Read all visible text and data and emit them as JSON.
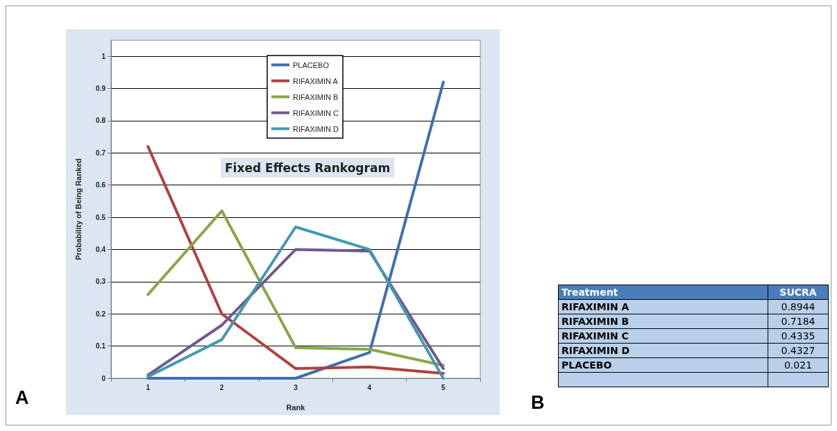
{
  "chart_data": [
    {
      "type": "line",
      "title": "Fixed Effects Rankogram",
      "xlabel": "Rank",
      "ylabel": "Probability of Being Ranked",
      "categories": [
        "1",
        "2",
        "3",
        "4",
        "5"
      ],
      "series": [
        {
          "name": "PLACEBO",
          "color": "#3f6fb0",
          "values": [
            0,
            0,
            0,
            0.08,
            0.92
          ]
        },
        {
          "name": "RIFAXIMIN A",
          "color": "#b0413e",
          "values": [
            0.72,
            0.2,
            0.03,
            0.035,
            0.015
          ]
        },
        {
          "name": "RIFAXIMIN B",
          "color": "#86a845",
          "values": [
            0.26,
            0.52,
            0.095,
            0.09,
            0.04
          ]
        },
        {
          "name": "RIFAXIMIN C",
          "color": "#71588f",
          "values": [
            0.01,
            0.165,
            0.4,
            0.395,
            0.03
          ]
        },
        {
          "name": "RIFAXIMIN D",
          "color": "#4299b0",
          "values": [
            0.005,
            0.12,
            0.47,
            0.4,
            0
          ]
        }
      ],
      "ylim": [
        0,
        1.05
      ],
      "yticks": [
        0,
        0.1,
        0.2,
        0.3,
        0.4,
        0.5,
        0.6,
        0.7,
        0.8,
        0.9,
        1
      ],
      "grid": "y",
      "legend": "top",
      "marker": "none",
      "line_style": "solid",
      "annotations": [
        "A"
      ]
    },
    {
      "type": "other",
      "xlabel": "Treatment",
      "ylabel": "SUCRA",
      "categories": [
        "RIFAXIMIN A",
        "RIFAXIMIN B",
        "RIFAXIMIN C",
        "RIFAXIMIN D",
        "PLACEBO"
      ],
      "values": [
        0.8944,
        0.7184,
        0.4335,
        0.4327,
        0.021
      ],
      "data_labels": true,
      "annotations": [
        "B"
      ]
    }
  ]
}
